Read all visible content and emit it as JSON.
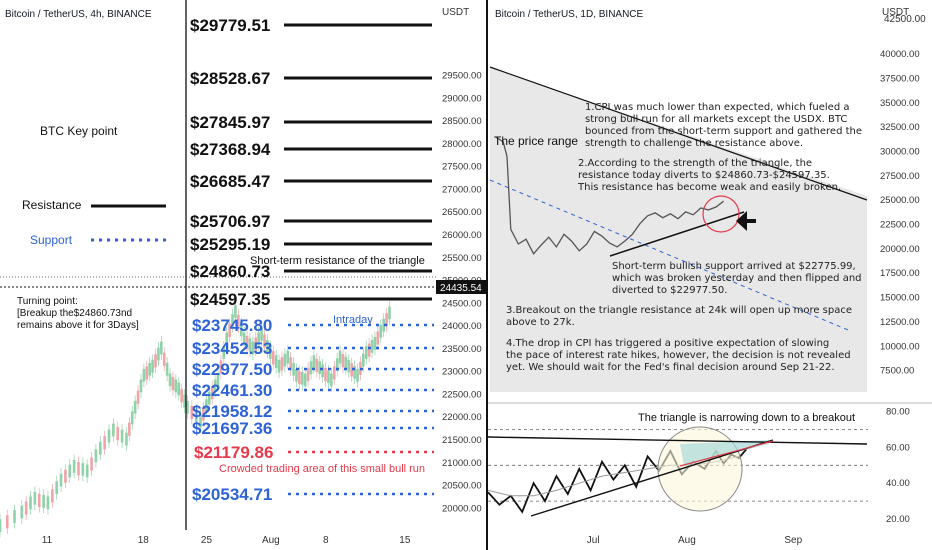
{
  "left": {
    "header": "Bitcoin / TetherUS, 4h, BINANCE",
    "currency": "USDT",
    "key_point_title": "BTC Key point",
    "legend_resistance": "Resistance",
    "legend_support": "Support",
    "turning_point": [
      "Turning point:",
      "[Breakup the$24860.73nd",
      "remains above it for 3Days]"
    ],
    "triangle_note": "Short-term resistance of the triangle",
    "intraday": "Intraday",
    "crowded_note": "Crowded trading area of this small bull run",
    "current_price_tag": "24435.54",
    "resistance_levels": [
      "$29779.51",
      "$28528.67",
      "$27845.97",
      "$27368.94",
      "$26685.47",
      "$25706.97",
      "$25295.19",
      "$24860.73",
      "$24597.35"
    ],
    "support_levels": [
      "$23745.80",
      "$23452.53",
      "$22977.50",
      "$22461.30",
      "$21958.12",
      "$21697.36",
      "$20534.71"
    ],
    "red_level": "$21179.86"
  },
  "right": {
    "header": "Bitcoin / TetherUS, 1D, BINANCE",
    "currency": "USDT",
    "price_range": "The price range",
    "note1": [
      "1.CPI was much lower than expected, which fueled a",
      "strong bull run for all markets except the USDX. BTC",
      "bounced from the short-term support and gathered the",
      "strength to challenge the resistance above."
    ],
    "note2": [
      "2.According to the strength of the triangle, the",
      "resistance today diverts to $24860.73-$24597.35.",
      "This resistance has become weak and easily broken."
    ],
    "note_support": [
      "Short-term bullish support arrived at $22775.99,",
      "which was broken yesterday and then flipped and",
      "diverted to $22977.50."
    ],
    "note3": [
      "3.Breakout on the triangle resistance at 24k will open up more space",
      "above to 27k."
    ],
    "note4": [
      "4.The drop in CPI has triggered a positive expectation of slowing",
      "the pace of interest rate hikes, however, the decision is not revealed",
      "yet. We should wait for the Fed's final decision around Sep 21-22."
    ],
    "rsi_title": "The triangle is narrowing down to a breakout",
    "up_arrow_top": "42500.00"
  },
  "chart_data": [
    {
      "type": "line",
      "title": "Bitcoin / TetherUS, 4h, BINANCE",
      "ylabel": "USDT",
      "ylim": [
        19700,
        30500
      ],
      "y_ticks": [
        "29500.00",
        "29000.00",
        "28500.00",
        "28000.00",
        "27500.00",
        "27000.00",
        "26500.00",
        "26000.00",
        "25500.00",
        "25000.00",
        "24500.00",
        "24000.00",
        "23500.00",
        "23000.00",
        "22500.00",
        "22000.00",
        "21500.00",
        "21000.00",
        "20500.00",
        "20000.00"
      ],
      "x_ticks": [
        "11",
        "18",
        "25",
        "Aug",
        "8",
        "15"
      ],
      "x_tick_pos": [
        0.105,
        0.325,
        0.47,
        0.61,
        0.75,
        0.925
      ],
      "price_path": [
        [
          0.0,
          19600
        ],
        [
          0.05,
          19900
        ],
        [
          0.08,
          20200
        ],
        [
          0.11,
          20100
        ],
        [
          0.14,
          20600
        ],
        [
          0.17,
          20900
        ],
        [
          0.2,
          20800
        ],
        [
          0.23,
          21300
        ],
        [
          0.26,
          21700
        ],
        [
          0.29,
          21500
        ],
        [
          0.31,
          22200
        ],
        [
          0.33,
          22900
        ],
        [
          0.35,
          23100
        ],
        [
          0.37,
          23500
        ],
        [
          0.39,
          22800
        ],
        [
          0.41,
          22600
        ],
        [
          0.43,
          22200
        ],
        [
          0.46,
          21900
        ],
        [
          0.48,
          22400
        ],
        [
          0.5,
          22800
        ],
        [
          0.52,
          23700
        ],
        [
          0.54,
          24300
        ],
        [
          0.56,
          23700
        ],
        [
          0.58,
          23500
        ],
        [
          0.6,
          23800
        ],
        [
          0.62,
          23400
        ],
        [
          0.64,
          23100
        ],
        [
          0.66,
          23300
        ],
        [
          0.68,
          22900
        ],
        [
          0.7,
          22800
        ],
        [
          0.72,
          23200
        ],
        [
          0.74,
          23000
        ],
        [
          0.76,
          22800
        ],
        [
          0.78,
          23300
        ],
        [
          0.8,
          23100
        ],
        [
          0.82,
          22900
        ],
        [
          0.84,
          23400
        ],
        [
          0.86,
          23600
        ],
        [
          0.88,
          24000
        ],
        [
          0.9,
          24400
        ]
      ]
    },
    {
      "type": "line",
      "title": "Bitcoin / TetherUS, 1D, BINANCE",
      "ylabel": "USDT",
      "ylim": [
        5000,
        43500
      ],
      "y_ticks": [
        "42500.00",
        "40000.00",
        "37500.00",
        "35000.00",
        "32500.00",
        "30000.00",
        "27500.00",
        "25000.00",
        "22500.00",
        "20000.00",
        "17500.00",
        "15000.00",
        "12500.00",
        "10000.00",
        "7500.00"
      ],
      "x_ticks": [
        "Jul",
        "Aug",
        "Sep"
      ],
      "x_tick_pos": [
        0.26,
        0.5,
        0.78
      ],
      "price_path": [
        [
          0.02,
          31500
        ],
        [
          0.04,
          31000
        ],
        [
          0.05,
          29500
        ],
        [
          0.06,
          22000
        ],
        [
          0.08,
          20500
        ],
        [
          0.1,
          21000
        ],
        [
          0.12,
          19500
        ],
        [
          0.14,
          20400
        ],
        [
          0.16,
          21200
        ],
        [
          0.18,
          20200
        ],
        [
          0.2,
          21500
        ],
        [
          0.22,
          20800
        ],
        [
          0.24,
          19800
        ],
        [
          0.26,
          20500
        ],
        [
          0.28,
          21800
        ],
        [
          0.3,
          21300
        ],
        [
          0.32,
          20600
        ],
        [
          0.34,
          20200
        ],
        [
          0.36,
          20800
        ],
        [
          0.38,
          21500
        ],
        [
          0.4,
          22600
        ],
        [
          0.42,
          23400
        ],
        [
          0.44,
          23700
        ],
        [
          0.46,
          23200
        ],
        [
          0.48,
          23600
        ],
        [
          0.5,
          23100
        ],
        [
          0.52,
          23800
        ],
        [
          0.54,
          23500
        ],
        [
          0.56,
          24200
        ],
        [
          0.58,
          24000
        ],
        [
          0.6,
          24300
        ],
        [
          0.62,
          24900
        ]
      ]
    },
    {
      "type": "line",
      "title": "The triangle is narrowing down to a breakout",
      "ylim": [
        15,
        82
      ],
      "y_ticks": [
        "80.00",
        "60.00",
        "40.00",
        "20.00"
      ],
      "x_tick_pos": [
        0.26,
        0.5,
        0.78
      ],
      "series": [
        {
          "values": [
            [
              0.0,
              35
            ],
            [
              0.03,
              28
            ],
            [
              0.06,
              33
            ],
            [
              0.09,
              24
            ],
            [
              0.12,
              40
            ],
            [
              0.15,
              30
            ],
            [
              0.18,
              44
            ],
            [
              0.21,
              34
            ],
            [
              0.24,
              48
            ],
            [
              0.27,
              36
            ],
            [
              0.3,
              52
            ],
            [
              0.33,
              42
            ],
            [
              0.36,
              50
            ],
            [
              0.39,
              38
            ],
            [
              0.42,
              55
            ],
            [
              0.45,
              47
            ],
            [
              0.48,
              58
            ],
            [
              0.51,
              45
            ],
            [
              0.54,
              52
            ],
            [
              0.57,
              48
            ],
            [
              0.6,
              58
            ],
            [
              0.62,
              51
            ],
            [
              0.64,
              56
            ],
            [
              0.66,
              54
            ],
            [
              0.68,
              59
            ]
          ]
        },
        {
          "values": [
            [
              0.0,
              36
            ],
            [
              0.06,
              33
            ],
            [
              0.12,
              33
            ],
            [
              0.18,
              36
            ],
            [
              0.24,
              40
            ],
            [
              0.3,
              44
            ],
            [
              0.36,
              46
            ],
            [
              0.42,
              48
            ],
            [
              0.48,
              50
            ],
            [
              0.54,
              50
            ],
            [
              0.6,
              52
            ],
            [
              0.66,
              55
            ]
          ]
        }
      ],
      "levels": [
        70,
        50,
        30
      ]
    }
  ]
}
